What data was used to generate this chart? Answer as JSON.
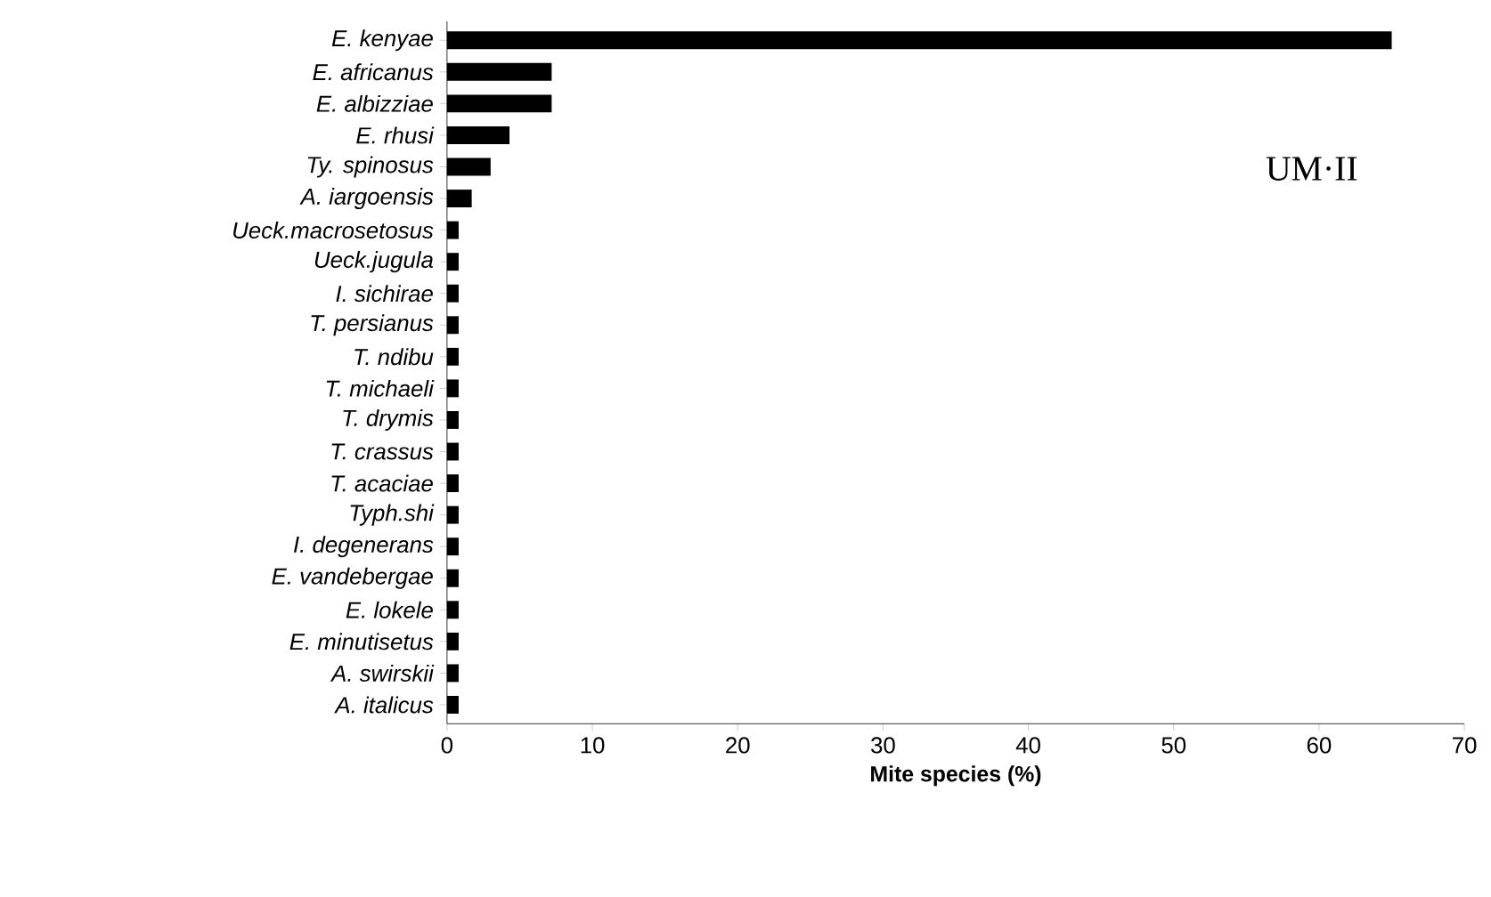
{
  "chart_data": {
    "type": "bar",
    "orientation": "horizontal",
    "categories": [
      "E. kenyae",
      "E. africanus",
      "E. albizziae",
      "E. rhusi",
      "Ty. spinosus",
      "A. iargoensis",
      "Ueck.macrosetosus",
      "Ueck.jugula",
      "I. sichirae",
      "T. persianus",
      "T. ndibu",
      "T. michaeli",
      "T. drymis",
      "T. crassus",
      "T. acaciae",
      "Typh.shi",
      "I. degenerans",
      "E. vandebergae",
      "E. lokele",
      "E. minutisetus",
      "A. swirskii",
      "A. italicus"
    ],
    "values": [
      65,
      7.2,
      7.2,
      4.3,
      3.0,
      1.7,
      0.8,
      0.8,
      0.8,
      0.8,
      0.8,
      0.8,
      0.8,
      0.8,
      0.8,
      0.8,
      0.8,
      0.8,
      0.8,
      0.8,
      0.8,
      0.8
    ],
    "color": "#000000",
    "xlim": [
      0,
      70
    ],
    "xticks": [
      0,
      10,
      20,
      30,
      40,
      50,
      60,
      70
    ],
    "xlabel": "Mite species (%)",
    "annotations": [
      "UM·II"
    ]
  }
}
